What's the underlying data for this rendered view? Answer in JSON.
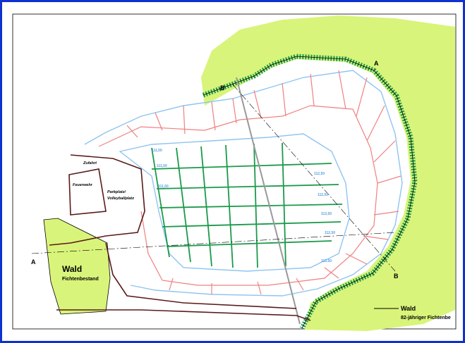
{
  "labels": {
    "wald_left": "Wald",
    "wald_left_sub": "Fichtenbestand",
    "wald_right": "Wald",
    "wald_right_sub": "82-jähriger Fichtenbe",
    "section_a_left": "A",
    "section_a_right": "A",
    "section_b_left": "B",
    "section_b_right": "B",
    "feuerwehr": "Feuerwehr",
    "parkplatz_1": "Parkplatz/",
    "parkplatz_2": "Volleyballplatz",
    "zufahrt": "Zufahrt"
  },
  "elevations": [
    "111,50",
    "112,50",
    "111,50",
    "111,50",
    "112,50",
    "113,50",
    "112,50",
    "113,50"
  ]
}
